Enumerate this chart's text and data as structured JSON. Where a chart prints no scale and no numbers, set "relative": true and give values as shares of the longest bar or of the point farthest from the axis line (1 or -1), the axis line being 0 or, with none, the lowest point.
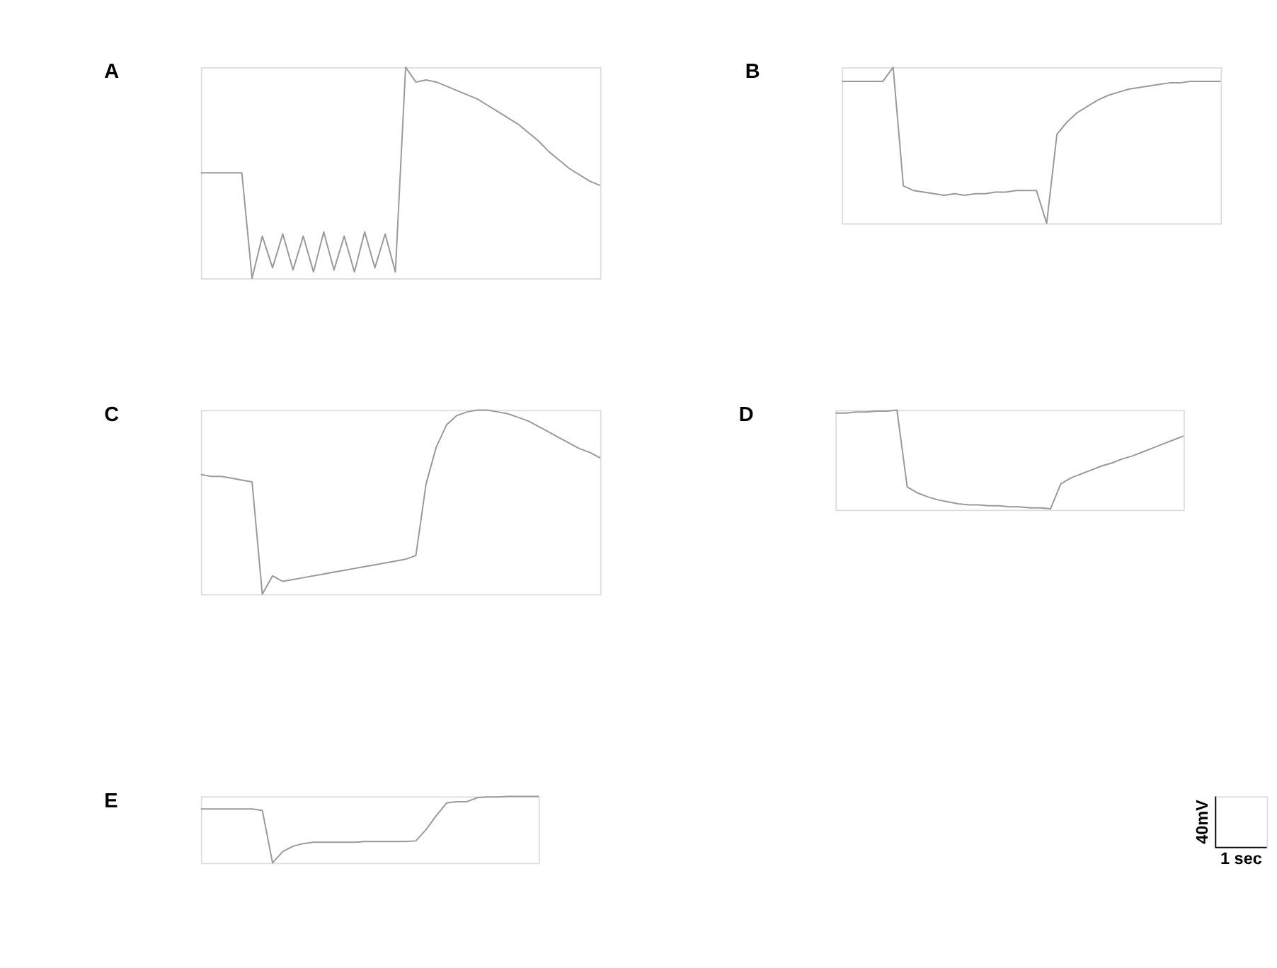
{
  "chart_data": [
    {
      "type": "line",
      "title": "A",
      "relative": true,
      "color": "#9a9a9a",
      "categories": [
        null,
        null,
        null,
        null,
        null,
        null,
        null,
        null,
        null,
        null,
        null,
        null,
        null,
        null,
        null,
        null,
        null,
        null,
        null,
        null,
        null,
        null,
        null,
        null,
        null,
        null,
        null,
        null,
        null,
        null,
        null,
        null,
        null,
        null,
        null,
        null,
        null,
        null,
        null,
        null
      ],
      "values": [
        0.5,
        0.5,
        0.5,
        0.5,
        0.5,
        0.0,
        0.2,
        0.05,
        0.21,
        0.04,
        0.2,
        0.03,
        0.22,
        0.04,
        0.2,
        0.03,
        0.22,
        0.05,
        0.21,
        0.03,
        1.0,
        0.93,
        0.94,
        0.93,
        0.91,
        0.89,
        0.87,
        0.85,
        0.82,
        0.79,
        0.76,
        0.73,
        0.69,
        0.65,
        0.6,
        0.56,
        0.52,
        0.49,
        0.46,
        0.44
      ]
    },
    {
      "type": "line",
      "title": "B",
      "relative": true,
      "color": "#9a9a9a",
      "categories": [
        null,
        null,
        null,
        null,
        null,
        null,
        null,
        null,
        null,
        null,
        null,
        null,
        null,
        null,
        null,
        null,
        null,
        null,
        null,
        null,
        null,
        null,
        null,
        null,
        null,
        null,
        null,
        null,
        null,
        null,
        null,
        null,
        null,
        null,
        null,
        null,
        null,
        null
      ],
      "values": [
        0.91,
        0.91,
        0.91,
        0.91,
        0.91,
        1.0,
        0.24,
        0.21,
        0.2,
        0.19,
        0.18,
        0.19,
        0.18,
        0.19,
        0.19,
        0.2,
        0.2,
        0.21,
        0.21,
        0.21,
        0.0,
        0.57,
        0.65,
        0.71,
        0.75,
        0.79,
        0.82,
        0.84,
        0.86,
        0.87,
        0.88,
        0.89,
        0.9,
        0.9,
        0.91,
        0.91,
        0.91,
        0.91
      ]
    },
    {
      "type": "line",
      "title": "C",
      "relative": true,
      "color": "#9a9a9a",
      "categories": [
        null,
        null,
        null,
        null,
        null,
        null,
        null,
        null,
        null,
        null,
        null,
        null,
        null,
        null,
        null,
        null,
        null,
        null,
        null,
        null,
        null,
        null,
        null,
        null,
        null,
        null,
        null,
        null,
        null,
        null,
        null,
        null,
        null,
        null,
        null,
        null,
        null,
        null,
        null,
        null
      ],
      "values": [
        0.65,
        0.64,
        0.64,
        0.63,
        0.62,
        0.61,
        0.0,
        0.1,
        0.07,
        0.08,
        0.09,
        0.1,
        0.11,
        0.12,
        0.13,
        0.14,
        0.15,
        0.16,
        0.17,
        0.18,
        0.19,
        0.21,
        0.6,
        0.8,
        0.92,
        0.97,
        0.99,
        1.0,
        1.0,
        0.99,
        0.98,
        0.96,
        0.94,
        0.91,
        0.88,
        0.85,
        0.82,
        0.79,
        0.77,
        0.74
      ]
    },
    {
      "type": "line",
      "title": "D",
      "relative": true,
      "color": "#9a9a9a",
      "categories": [
        null,
        null,
        null,
        null,
        null,
        null,
        null,
        null,
        null,
        null,
        null,
        null,
        null,
        null,
        null,
        null,
        null,
        null,
        null,
        null,
        null,
        null,
        null,
        null,
        null,
        null,
        null,
        null,
        null,
        null,
        null,
        null,
        null,
        null,
        null
      ],
      "values": [
        0.97,
        0.97,
        0.98,
        0.98,
        0.99,
        0.99,
        1.0,
        0.23,
        0.17,
        0.13,
        0.1,
        0.08,
        0.06,
        0.05,
        0.05,
        0.04,
        0.04,
        0.03,
        0.03,
        0.02,
        0.02,
        0.01,
        0.26,
        0.32,
        0.36,
        0.4,
        0.44,
        0.47,
        0.51,
        0.54,
        0.58,
        0.62,
        0.66,
        0.7,
        0.74
      ]
    },
    {
      "type": "line",
      "title": "E",
      "relative": true,
      "color": "#9a9a9a",
      "categories": [
        null,
        null,
        null,
        null,
        null,
        null,
        null,
        null,
        null,
        null,
        null,
        null,
        null,
        null,
        null,
        null,
        null,
        null,
        null,
        null,
        null,
        null,
        null,
        null,
        null,
        null,
        null,
        null,
        null,
        null,
        null,
        null,
        null,
        null
      ],
      "values": [
        0.81,
        0.81,
        0.81,
        0.81,
        0.81,
        0.81,
        0.79,
        0.0,
        0.17,
        0.25,
        0.29,
        0.31,
        0.31,
        0.31,
        0.31,
        0.31,
        0.32,
        0.32,
        0.32,
        0.32,
        0.32,
        0.33,
        0.5,
        0.71,
        0.9,
        0.92,
        0.92,
        0.98,
        0.99,
        0.99,
        1.0,
        1.0,
        1.0,
        1.0
      ]
    },
    {
      "type": "other",
      "annotations": [
        "40mV",
        "1 sec"
      ]
    }
  ]
}
